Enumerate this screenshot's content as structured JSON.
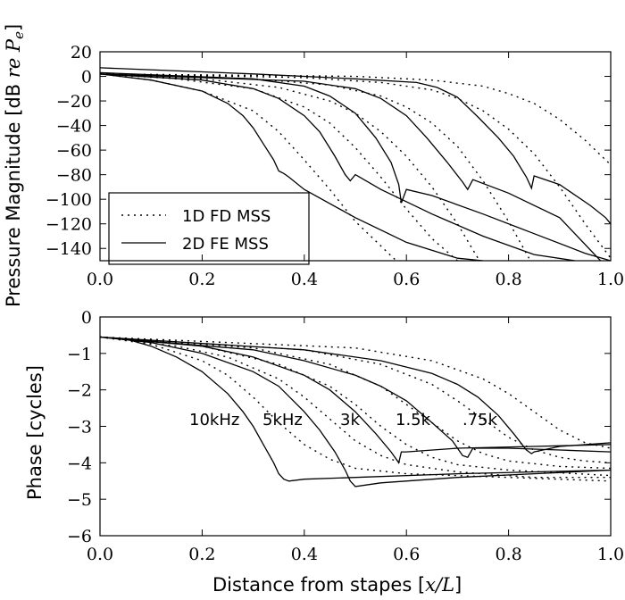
{
  "chart_data": [
    {
      "type": "line",
      "ylabel": "Pressure Magnitude [dB re P_e]",
      "xlim": [
        0,
        1
      ],
      "ylim": [
        -150,
        20
      ],
      "xticks": [
        "0.0",
        "0.2",
        "0.4",
        "0.6",
        "0.8",
        "1.0"
      ],
      "yticks": [
        "20",
        "0",
        "−20",
        "−40",
        "−60",
        "−80",
        "−100",
        "−120",
        "−140"
      ],
      "legend": {
        "placement": "lower-left",
        "entries": [
          {
            "label": "1D FD MSS",
            "style": "dotted"
          },
          {
            "label": "2D FE MSS",
            "style": "solid"
          }
        ]
      },
      "series": [
        {
          "style": "dotted",
          "x": [
            0,
            0.1,
            0.2,
            0.3,
            0.35,
            0.4,
            0.45,
            0.5,
            0.55,
            0.58
          ],
          "y": [
            2,
            -3,
            -12,
            -28,
            -45,
            -68,
            -92,
            -118,
            -138,
            -150
          ]
        },
        {
          "style": "dotted",
          "x": [
            0,
            0.15,
            0.3,
            0.4,
            0.45,
            0.5,
            0.55,
            0.6,
            0.65,
            0.7
          ],
          "y": [
            2,
            -2,
            -10,
            -25,
            -38,
            -58,
            -82,
            -108,
            -132,
            -150
          ]
        },
        {
          "style": "dotted",
          "x": [
            0,
            0.2,
            0.35,
            0.45,
            0.5,
            0.55,
            0.6,
            0.65,
            0.7,
            0.74
          ],
          "y": [
            2,
            -2,
            -9,
            -20,
            -30,
            -45,
            -65,
            -90,
            -120,
            -148
          ]
        },
        {
          "style": "dotted",
          "x": [
            0,
            0.3,
            0.45,
            0.55,
            0.6,
            0.65,
            0.7,
            0.75,
            0.8,
            0.84
          ],
          "y": [
            2,
            -2,
            -7,
            -16,
            -25,
            -38,
            -57,
            -85,
            -118,
            -148
          ]
        },
        {
          "style": "dotted",
          "x": [
            0,
            0.4,
            0.55,
            0.65,
            0.7,
            0.75,
            0.8,
            0.85,
            0.9,
            0.95,
            1.0
          ],
          "y": [
            2,
            -1,
            -5,
            -11,
            -18,
            -28,
            -43,
            -63,
            -90,
            -120,
            -148
          ]
        },
        {
          "style": "dotted",
          "x": [
            0,
            0.5,
            0.65,
            0.75,
            0.8,
            0.85,
            0.9,
            0.95,
            1.0
          ],
          "y": [
            2,
            0,
            -3,
            -8,
            -14,
            -22,
            -35,
            -52,
            -72
          ]
        },
        {
          "style": "solid",
          "x": [
            0,
            0.1,
            0.2,
            0.25,
            0.28,
            0.3,
            0.32,
            0.34,
            0.35,
            0.36,
            0.37,
            0.4,
            0.5,
            0.6,
            0.7,
            0.75
          ],
          "y": [
            2,
            -3,
            -12,
            -22,
            -32,
            -42,
            -55,
            -68,
            -77,
            -79,
            -82,
            -92,
            -115,
            -135,
            -148,
            -150
          ]
        },
        {
          "style": "solid",
          "x": [
            0,
            0.2,
            0.3,
            0.35,
            0.4,
            0.43,
            0.46,
            0.48,
            0.49,
            0.5,
            0.55,
            0.65,
            0.75,
            0.85,
            0.93
          ],
          "y": [
            2,
            -3,
            -10,
            -18,
            -32,
            -45,
            -65,
            -80,
            -85,
            -80,
            -92,
            -112,
            -130,
            -145,
            -150
          ]
        },
        {
          "style": "solid",
          "x": [
            0,
            0.3,
            0.4,
            0.45,
            0.5,
            0.54,
            0.57,
            0.585,
            0.59,
            0.6,
            0.65,
            0.75,
            0.85,
            0.95,
            1.0
          ],
          "y": [
            3,
            -2,
            -8,
            -16,
            -30,
            -50,
            -70,
            -88,
            -103,
            -92,
            -97,
            -112,
            -128,
            -144,
            -150
          ]
        },
        {
          "style": "solid",
          "x": [
            0,
            0.4,
            0.5,
            0.55,
            0.6,
            0.64,
            0.68,
            0.71,
            0.72,
            0.73,
            0.8,
            0.9,
            0.98
          ],
          "y": [
            2,
            -4,
            -10,
            -18,
            -32,
            -50,
            -70,
            -86,
            -92,
            -84,
            -95,
            -115,
            -150
          ]
        },
        {
          "style": "solid",
          "x": [
            0,
            0.3,
            0.5,
            0.62,
            0.66,
            0.7,
            0.74,
            0.78,
            0.81,
            0.835,
            0.845,
            0.85,
            0.9,
            0.96,
            0.99,
            1.0
          ],
          "y": [
            7,
            2,
            -2,
            -5,
            -9,
            -17,
            -33,
            -50,
            -65,
            -82,
            -91,
            -81,
            -88,
            -105,
            -115,
            -120
          ]
        }
      ]
    },
    {
      "type": "line",
      "xlabel": "Distance from stapes [x/L]",
      "ylabel": "Phase [cycles]",
      "xlim": [
        0,
        1
      ],
      "ylim": [
        -6,
        0
      ],
      "xticks": [
        "0.0",
        "0.2",
        "0.4",
        "0.6",
        "0.8",
        "1.0"
      ],
      "yticks": [
        "0",
        "−1",
        "−2",
        "−3",
        "−4",
        "−5",
        "−6"
      ],
      "annotations": [
        "10kHz",
        "5kHz",
        "3k",
        "1.5k",
        ".75k"
      ],
      "series": [
        {
          "style": "dotted",
          "x": [
            0,
            0.1,
            0.2,
            0.25,
            0.3,
            0.35,
            0.4,
            0.45,
            0.5,
            0.6,
            0.8,
            1.0
          ],
          "y": [
            -0.55,
            -0.75,
            -1.2,
            -1.6,
            -2.2,
            -2.9,
            -3.5,
            -3.9,
            -4.15,
            -4.3,
            -4.4,
            -4.5
          ]
        },
        {
          "style": "dotted",
          "x": [
            0,
            0.15,
            0.25,
            0.35,
            0.4,
            0.45,
            0.5,
            0.55,
            0.6,
            0.7,
            0.85,
            1.0
          ],
          "y": [
            -0.55,
            -0.8,
            -1.1,
            -1.7,
            -2.2,
            -2.8,
            -3.4,
            -3.8,
            -4.05,
            -4.25,
            -4.4,
            -4.4
          ]
        },
        {
          "style": "dotted",
          "x": [
            0,
            0.2,
            0.35,
            0.45,
            0.5,
            0.55,
            0.6,
            0.65,
            0.7,
            0.8,
            1.0
          ],
          "y": [
            -0.55,
            -0.8,
            -1.3,
            -1.9,
            -2.4,
            -3.0,
            -3.5,
            -3.85,
            -4.05,
            -4.2,
            -4.35
          ]
        },
        {
          "style": "dotted",
          "x": [
            0,
            0.3,
            0.45,
            0.55,
            0.6,
            0.65,
            0.7,
            0.75,
            0.8,
            0.9,
            1.0
          ],
          "y": [
            -0.55,
            -0.85,
            -1.3,
            -1.9,
            -2.4,
            -2.9,
            -3.4,
            -3.75,
            -3.95,
            -4.1,
            -4.15
          ]
        },
        {
          "style": "dotted",
          "x": [
            0,
            0.4,
            0.55,
            0.65,
            0.7,
            0.75,
            0.8,
            0.85,
            0.9,
            0.95,
            1.0
          ],
          "y": [
            -0.55,
            -0.9,
            -1.3,
            -1.85,
            -2.3,
            -2.8,
            -3.3,
            -3.65,
            -3.85,
            -3.95,
            -4.0
          ]
        },
        {
          "style": "dotted",
          "x": [
            0,
            0.5,
            0.65,
            0.75,
            0.8,
            0.85,
            0.9,
            0.95,
            1.0
          ],
          "y": [
            -0.55,
            -0.85,
            -1.2,
            -1.7,
            -2.1,
            -2.6,
            -3.1,
            -3.45,
            -3.6
          ]
        },
        {
          "style": "solid",
          "x": [
            0,
            0.05,
            0.1,
            0.15,
            0.2,
            0.25,
            0.28,
            0.3,
            0.32,
            0.34,
            0.35,
            0.36,
            0.37,
            0.4,
            0.5,
            0.7,
            1.0
          ],
          "y": [
            -0.55,
            -0.6,
            -0.8,
            -1.1,
            -1.5,
            -2.1,
            -2.6,
            -3.0,
            -3.5,
            -4.0,
            -4.3,
            -4.45,
            -4.5,
            -4.45,
            -4.4,
            -4.3,
            -4.2
          ]
        },
        {
          "style": "solid",
          "x": [
            0,
            0.1,
            0.2,
            0.3,
            0.35,
            0.4,
            0.43,
            0.46,
            0.48,
            0.49,
            0.5,
            0.55,
            0.7,
            0.85,
            1.0
          ],
          "y": [
            -0.55,
            -0.7,
            -1.0,
            -1.5,
            -1.9,
            -2.6,
            -3.1,
            -3.7,
            -4.2,
            -4.5,
            -4.65,
            -4.55,
            -4.4,
            -4.3,
            -4.2
          ]
        },
        {
          "style": "solid",
          "x": [
            0,
            0.2,
            0.3,
            0.4,
            0.45,
            0.5,
            0.54,
            0.57,
            0.585,
            0.59,
            0.6,
            0.7,
            0.85,
            1.0
          ],
          "y": [
            -0.55,
            -0.8,
            -1.1,
            -1.6,
            -2.0,
            -2.6,
            -3.2,
            -3.7,
            -4.0,
            -3.7,
            -3.7,
            -3.6,
            -3.55,
            -3.5
          ]
        },
        {
          "style": "solid",
          "x": [
            0,
            0.3,
            0.4,
            0.5,
            0.55,
            0.6,
            0.65,
            0.69,
            0.71,
            0.72,
            0.73,
            0.8,
            0.9,
            1.0
          ],
          "y": [
            -0.55,
            -0.9,
            -1.2,
            -1.6,
            -1.9,
            -2.3,
            -2.9,
            -3.4,
            -3.8,
            -3.85,
            -3.6,
            -3.6,
            -3.65,
            -3.7
          ]
        },
        {
          "style": "solid",
          "x": [
            0,
            0.4,
            0.55,
            0.65,
            0.7,
            0.74,
            0.78,
            0.81,
            0.835,
            0.845,
            0.85,
            0.9,
            1.0
          ],
          "y": [
            -0.55,
            -0.9,
            -1.2,
            -1.55,
            -1.85,
            -2.2,
            -2.7,
            -3.2,
            -3.65,
            -3.75,
            -3.7,
            -3.55,
            -3.45
          ]
        }
      ]
    }
  ]
}
